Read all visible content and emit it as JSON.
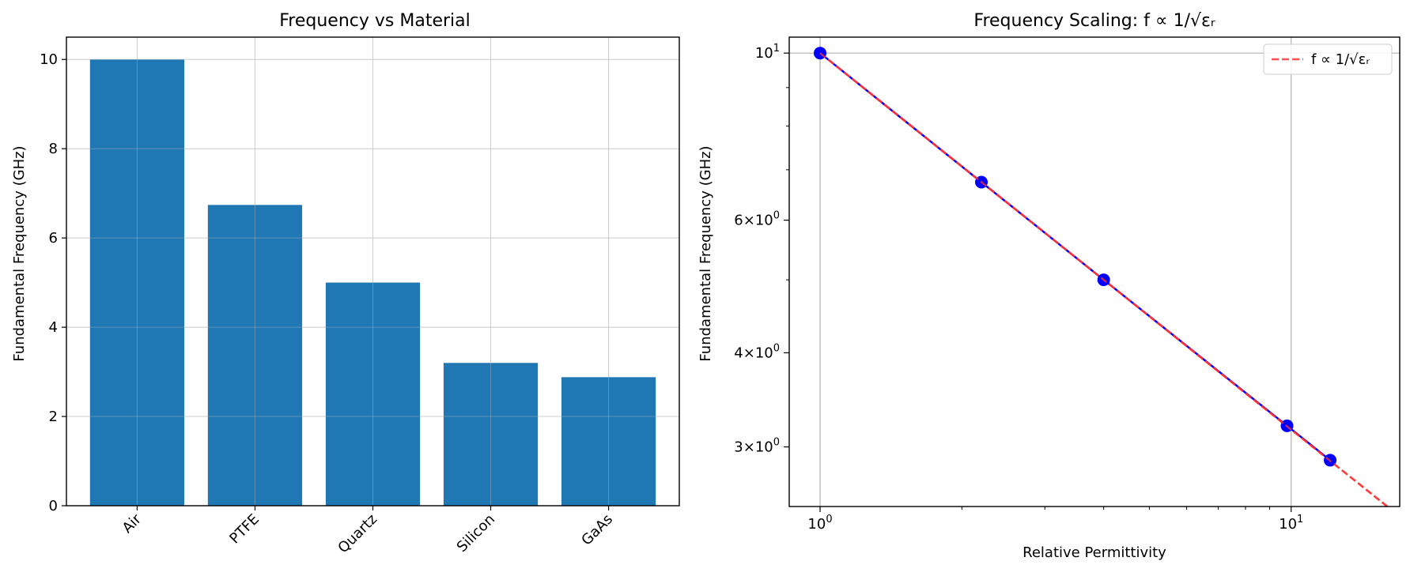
{
  "chart_data": [
    {
      "type": "bar",
      "title": "Frequency vs Material",
      "xlabel": "",
      "ylabel": "Fundamental Frequency (GHz)",
      "categories": [
        "Air",
        "PTFE",
        "Quartz",
        "Silicon",
        "GaAs"
      ],
      "values": [
        10.0,
        6.74,
        5.0,
        3.2,
        2.88
      ],
      "ylim": [
        0,
        10.5
      ],
      "yticks": [
        0,
        2,
        4,
        6,
        8,
        10
      ],
      "ytick_labels": [
        "0",
        "2",
        "4",
        "6",
        "8",
        "10"
      ],
      "grid": true,
      "colors": {
        "bar": "#1f77b4",
        "grid": "#e3e3e3"
      }
    },
    {
      "type": "line",
      "title": "Frequency Scaling: f ∝ 1/√εᵣ",
      "xlabel": "Relative Permittivity",
      "ylabel": "Fundamental Frequency (GHz)",
      "xscale": "log",
      "yscale": "log",
      "xlim": [
        0.86,
        17.0
      ],
      "ylim": [
        2.5,
        10.5
      ],
      "xticks": [
        {
          "value": 1,
          "base": "10",
          "exp": "0"
        },
        {
          "value": 10,
          "base": "10",
          "exp": "1"
        }
      ],
      "yticks": [
        {
          "value": 10,
          "mant": "",
          "base": "10",
          "exp": "1"
        },
        {
          "value": 6,
          "mant": "6",
          "base": "10",
          "exp": "0"
        },
        {
          "value": 4,
          "mant": "4",
          "base": "10",
          "exp": "0"
        },
        {
          "value": 3,
          "mant": "3",
          "base": "10",
          "exp": "0"
        }
      ],
      "series": [
        {
          "style": "solid-markers",
          "color": "#0000ff",
          "x": [
            1.0,
            2.2,
            4.0,
            9.8,
            12.1
          ],
          "y": [
            10.0,
            6.74,
            5.0,
            3.2,
            2.88
          ]
        },
        {
          "name": "f ∝ 1/√εᵣ",
          "style": "dashed",
          "color": "#ff3333",
          "x": [
            1.0,
            16.0
          ],
          "y": [
            10.0,
            2.5
          ]
        }
      ],
      "legend": "top-right",
      "grid": true
    }
  ]
}
